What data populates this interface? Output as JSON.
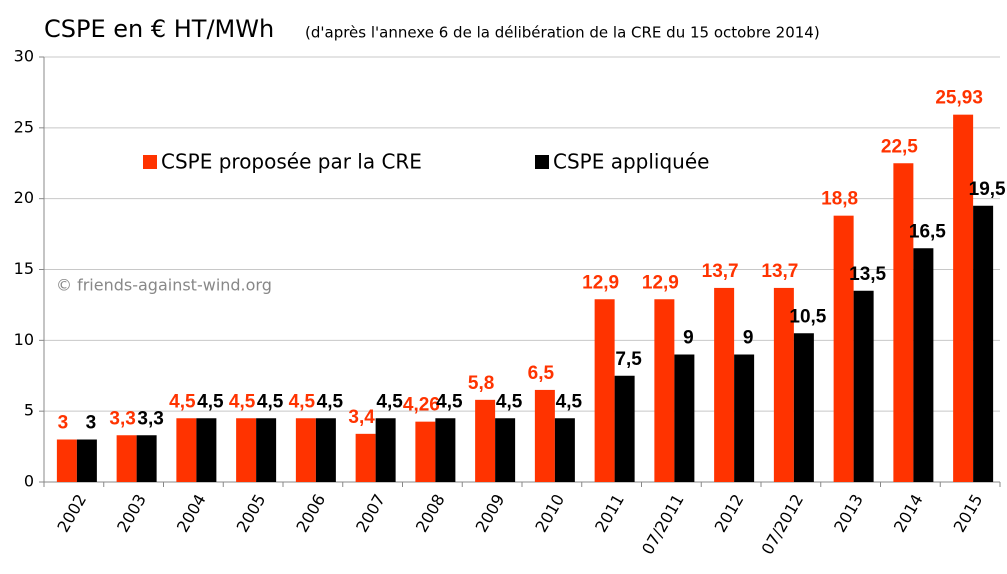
{
  "chart_data": {
    "type": "bar",
    "title": "CSPE en € HT/MWh",
    "subtitle": "(d'après l'annexe 6 de la délibération de la CRE du 15 octobre 2014)",
    "annotations": [
      "© friends-against-wind.org"
    ],
    "categories": [
      "2002",
      "2003",
      "2004",
      "2005",
      "2006",
      "2007",
      "2008",
      "2009",
      "2010",
      "2011",
      "07/2011",
      "2012",
      "07/2012",
      "2013",
      "2014",
      "2015"
    ],
    "series": [
      {
        "name": "CSPE proposée par la CRE",
        "color": "#ff3300",
        "values": [
          3,
          3.3,
          4.5,
          4.5,
          4.5,
          3.4,
          4.26,
          5.8,
          6.5,
          12.9,
          12.9,
          13.7,
          13.7,
          18.8,
          22.5,
          25.93
        ],
        "value_labels": [
          "3",
          "3,3",
          "4,5",
          "4,5",
          "4,5",
          "3,4",
          "4,26",
          "5,8",
          "6,5",
          "12,9",
          "12,9",
          "13,7",
          "13,7",
          "18,8",
          "22,5",
          "25,93"
        ]
      },
      {
        "name": "CSPE appliquée",
        "color": "#000000",
        "values": [
          3,
          3.3,
          4.5,
          4.5,
          4.5,
          4.5,
          4.5,
          4.5,
          4.5,
          7.5,
          9,
          9,
          10.5,
          13.5,
          16.5,
          19.5
        ],
        "value_labels": [
          "3",
          "3,3",
          "4,5",
          "4,5",
          "4,5",
          "4,5",
          "4,5",
          "4,5",
          "4,5",
          "7,5",
          "9",
          "9",
          "10,5",
          "13,5",
          "16,5",
          "19,5"
        ]
      }
    ],
    "ylim": [
      0,
      30
    ],
    "yticks": [
      0,
      5,
      10,
      15,
      20,
      25,
      30
    ],
    "grid": true,
    "legend": "top-left"
  }
}
